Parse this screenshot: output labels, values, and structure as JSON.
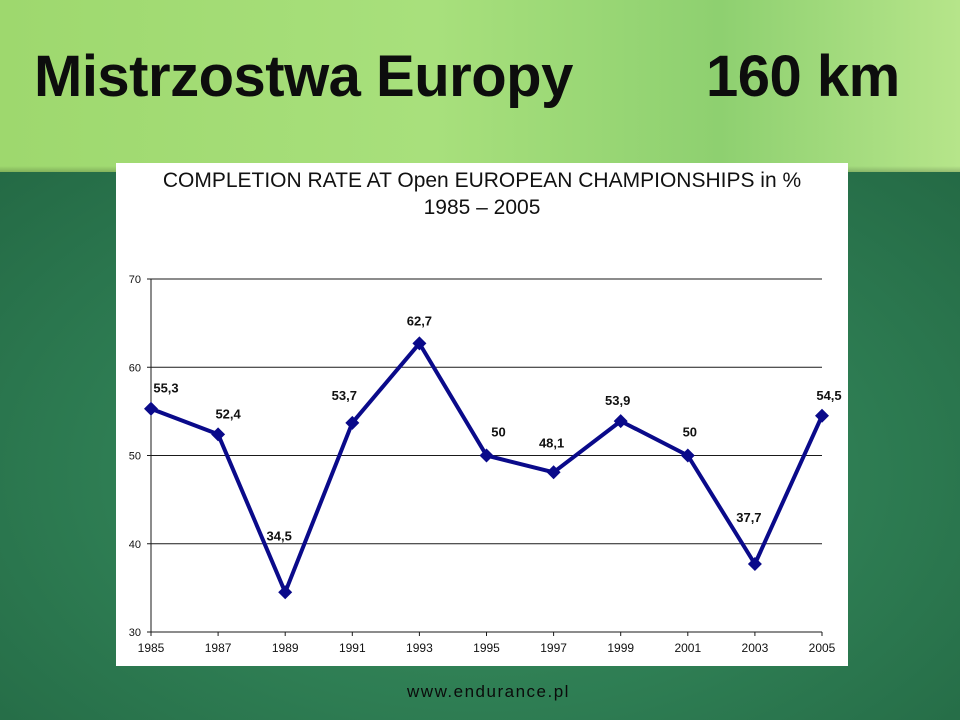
{
  "slide": {
    "title": "Mistrzostwa Europy",
    "subtitle_right": "160 km",
    "footer": "www.endurance.pl"
  },
  "colors": {
    "top_band": "#a8e07c",
    "bottom_band": "#2e7d53",
    "series": "#0a0a8a",
    "title_text": "#0d0d0d"
  },
  "chart_data": {
    "type": "line",
    "title": "COMPLETION RATE AT Open EUROPEAN CHAMPIONSHIPS in %",
    "subtitle": "1985 – 2005",
    "xlabel": "",
    "ylabel": "",
    "x": [
      "1985",
      "1987",
      "1989",
      "1991",
      "1993",
      "1995",
      "1997",
      "1999",
      "2001",
      "2003",
      "2005"
    ],
    "series": [
      {
        "values": [
          55.3,
          52.4,
          34.5,
          53.7,
          62.7,
          50,
          48.1,
          53.9,
          50,
          37.7,
          54.5
        ]
      }
    ],
    "data_labels": [
      "55,3",
      "52,4",
      "34,5",
      "53,7",
      "62,7",
      "50",
      "48,1",
      "53,9",
      "50",
      "37,7",
      "54,5"
    ],
    "ylim": [
      30,
      70
    ],
    "yticks": [
      30,
      40,
      50,
      60,
      70
    ],
    "grid": true,
    "legend": "none"
  }
}
